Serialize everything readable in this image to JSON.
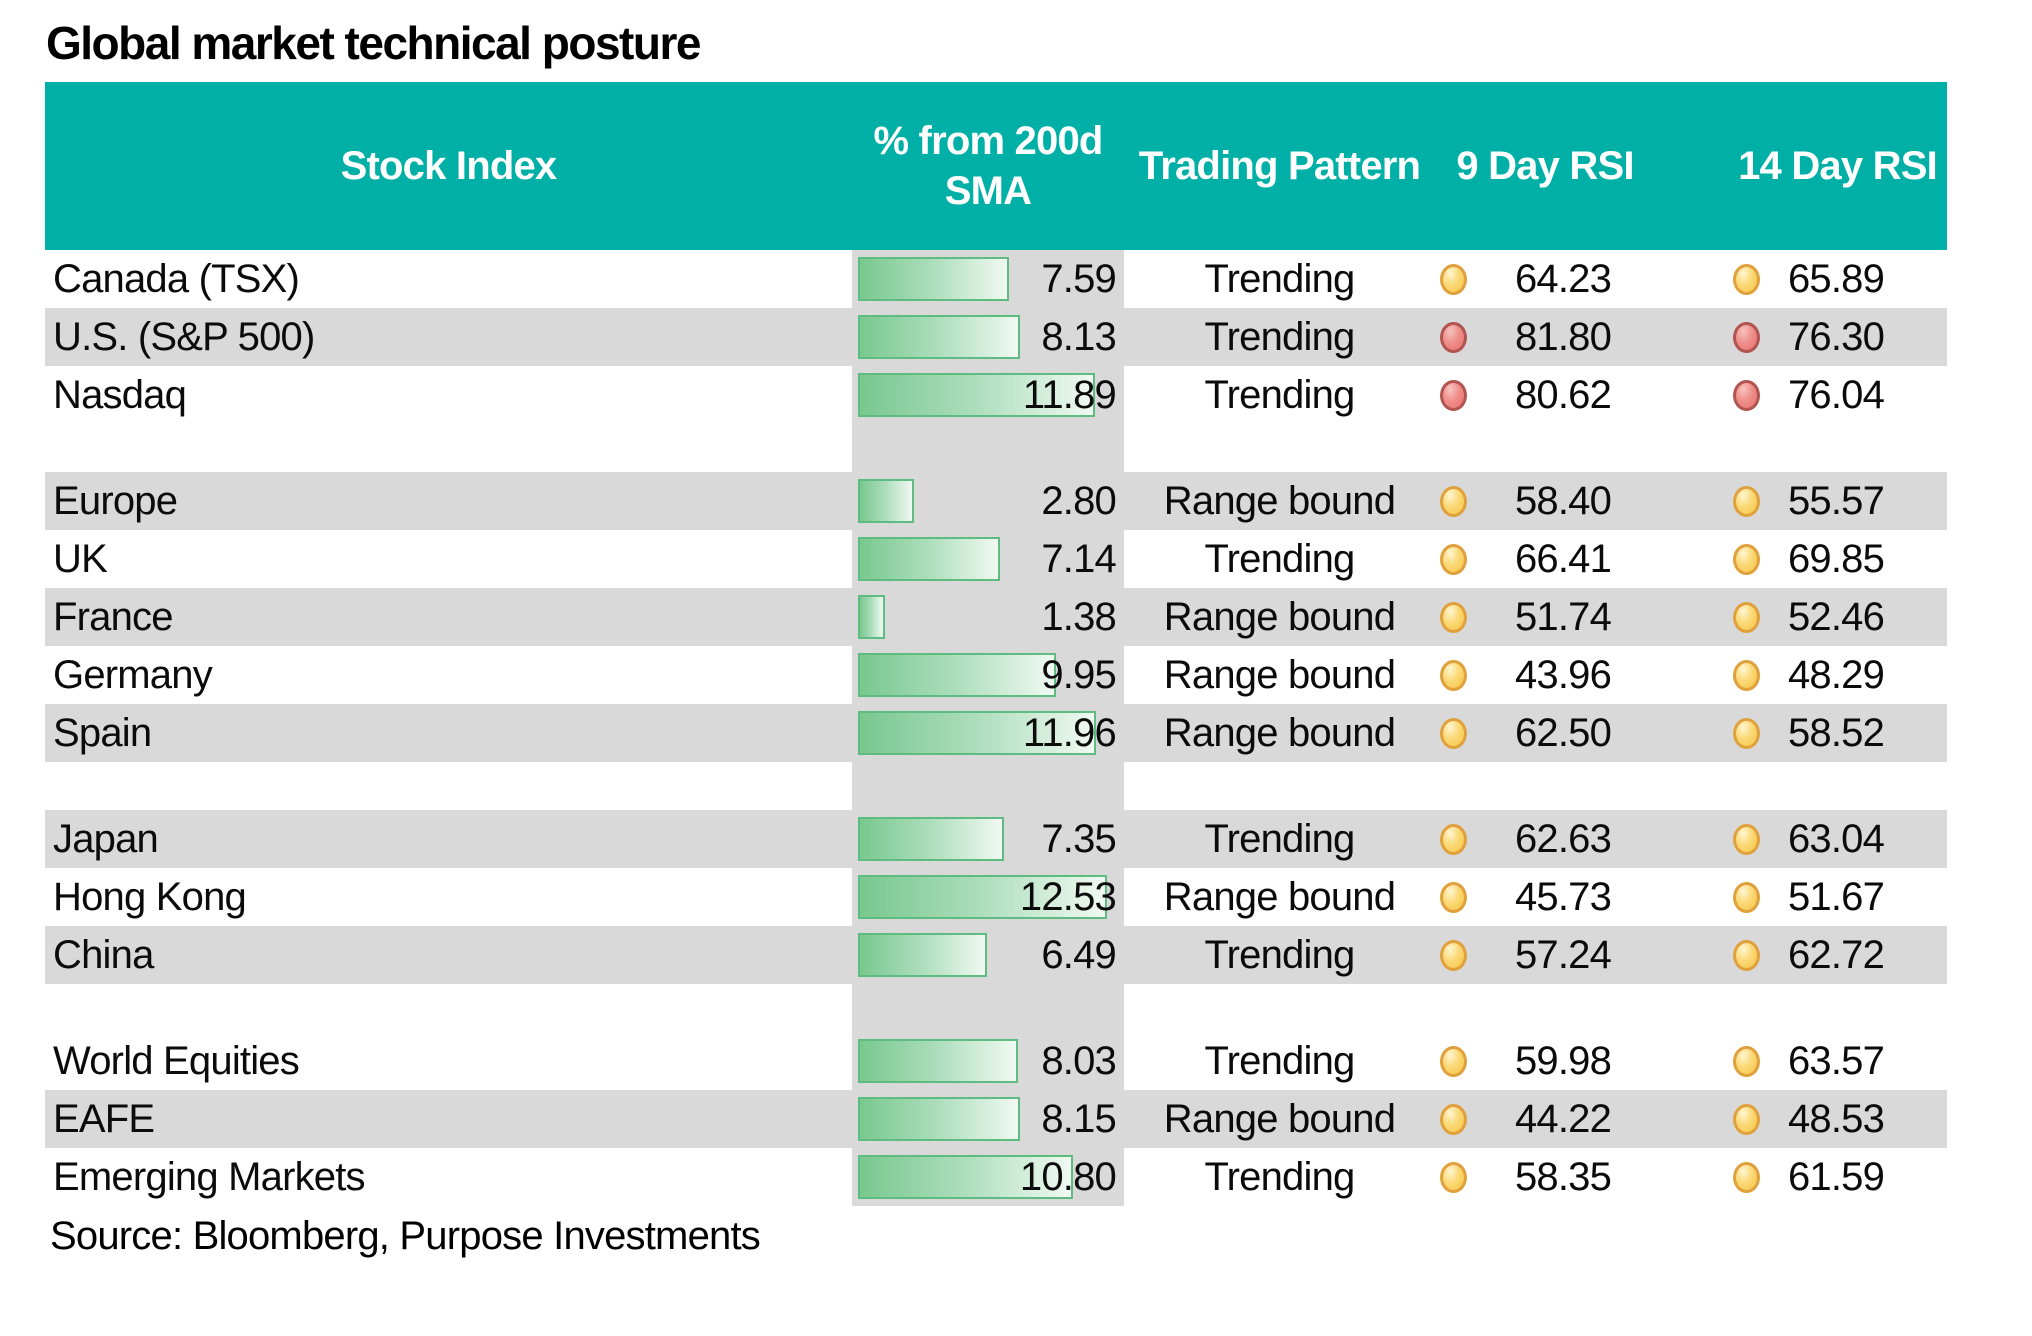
{
  "chart_data": {
    "type": "table",
    "title": "Global market technical posture",
    "source": "Source: Bloomberg, Purpose Investments",
    "headers": {
      "index": "Stock Index",
      "sma": "% from 200d SMA",
      "pattern": "Trading Pattern",
      "rsi9": "9 Day RSI",
      "rsi14": "14 Day RSI"
    },
    "bar_axis_max": 13.2,
    "groups": [
      [
        {
          "index": "Canada (TSX)",
          "pct_from_200d_sma": "7.59",
          "pattern": "Trending",
          "rsi9": "64.23",
          "rsi9_signal": "yellow",
          "rsi14": "65.89",
          "rsi14_signal": "yellow",
          "shaded": false
        },
        {
          "index": "U.S. (S&P 500)",
          "pct_from_200d_sma": "8.13",
          "pattern": "Trending",
          "rsi9": "81.80",
          "rsi9_signal": "red",
          "rsi14": "76.30",
          "rsi14_signal": "red",
          "shaded": true
        },
        {
          "index": "Nasdaq",
          "pct_from_200d_sma": "11.89",
          "pattern": "Trending",
          "rsi9": "80.62",
          "rsi9_signal": "red",
          "rsi14": "76.04",
          "rsi14_signal": "red",
          "shaded": false
        }
      ],
      [
        {
          "index": "Europe",
          "pct_from_200d_sma": "2.80",
          "pattern": "Range bound",
          "rsi9": "58.40",
          "rsi9_signal": "yellow",
          "rsi14": "55.57",
          "rsi14_signal": "yellow",
          "shaded": true
        },
        {
          "index": "UK",
          "pct_from_200d_sma": "7.14",
          "pattern": "Trending",
          "rsi9": "66.41",
          "rsi9_signal": "yellow",
          "rsi14": "69.85",
          "rsi14_signal": "yellow",
          "shaded": false
        },
        {
          "index": "France",
          "pct_from_200d_sma": "1.38",
          "pattern": "Range bound",
          "rsi9": "51.74",
          "rsi9_signal": "yellow",
          "rsi14": "52.46",
          "rsi14_signal": "yellow",
          "shaded": true
        },
        {
          "index": "Germany",
          "pct_from_200d_sma": "9.95",
          "pattern": "Range bound",
          "rsi9": "43.96",
          "rsi9_signal": "yellow",
          "rsi14": "48.29",
          "rsi14_signal": "yellow",
          "shaded": false
        },
        {
          "index": "Spain",
          "pct_from_200d_sma": "11.96",
          "pattern": "Range bound",
          "rsi9": "62.50",
          "rsi9_signal": "yellow",
          "rsi14": "58.52",
          "rsi14_signal": "yellow",
          "shaded": true
        }
      ],
      [
        {
          "index": "Japan",
          "pct_from_200d_sma": "7.35",
          "pattern": "Trending",
          "rsi9": "62.63",
          "rsi9_signal": "yellow",
          "rsi14": "63.04",
          "rsi14_signal": "yellow",
          "shaded": true
        },
        {
          "index": "Hong Kong",
          "pct_from_200d_sma": "12.53",
          "pattern": "Range bound",
          "rsi9": "45.73",
          "rsi9_signal": "yellow",
          "rsi14": "51.67",
          "rsi14_signal": "yellow",
          "shaded": false
        },
        {
          "index": "China",
          "pct_from_200d_sma": "6.49",
          "pattern": "Trending",
          "rsi9": "57.24",
          "rsi9_signal": "yellow",
          "rsi14": "62.72",
          "rsi14_signal": "yellow",
          "shaded": true
        }
      ],
      [
        {
          "index": "World Equities",
          "pct_from_200d_sma": "8.03",
          "pattern": "Trending",
          "rsi9": "59.98",
          "rsi9_signal": "yellow",
          "rsi14": "63.57",
          "rsi14_signal": "yellow",
          "shaded": false
        },
        {
          "index": "EAFE",
          "pct_from_200d_sma": "8.15",
          "pattern": "Range bound",
          "rsi9": "44.22",
          "rsi9_signal": "yellow",
          "rsi14": "48.53",
          "rsi14_signal": "yellow",
          "shaded": true
        },
        {
          "index": "Emerging Markets",
          "pct_from_200d_sma": "10.80",
          "pattern": "Trending",
          "rsi9": "58.35",
          "rsi9_signal": "yellow",
          "rsi14": "61.59",
          "rsi14_signal": "yellow",
          "shaded": false
        }
      ]
    ],
    "colors": {
      "header_teal": "#00B0A6",
      "row_shade_gray": "#D9D9D9",
      "bar_border_green": "#5FBC80",
      "bar_fill_green": "#79C88F",
      "signal_yellow": "#F6C342",
      "signal_yellow_border": "#E0A03C",
      "signal_red": "#E76F6C",
      "signal_red_border": "#B2544F"
    }
  }
}
